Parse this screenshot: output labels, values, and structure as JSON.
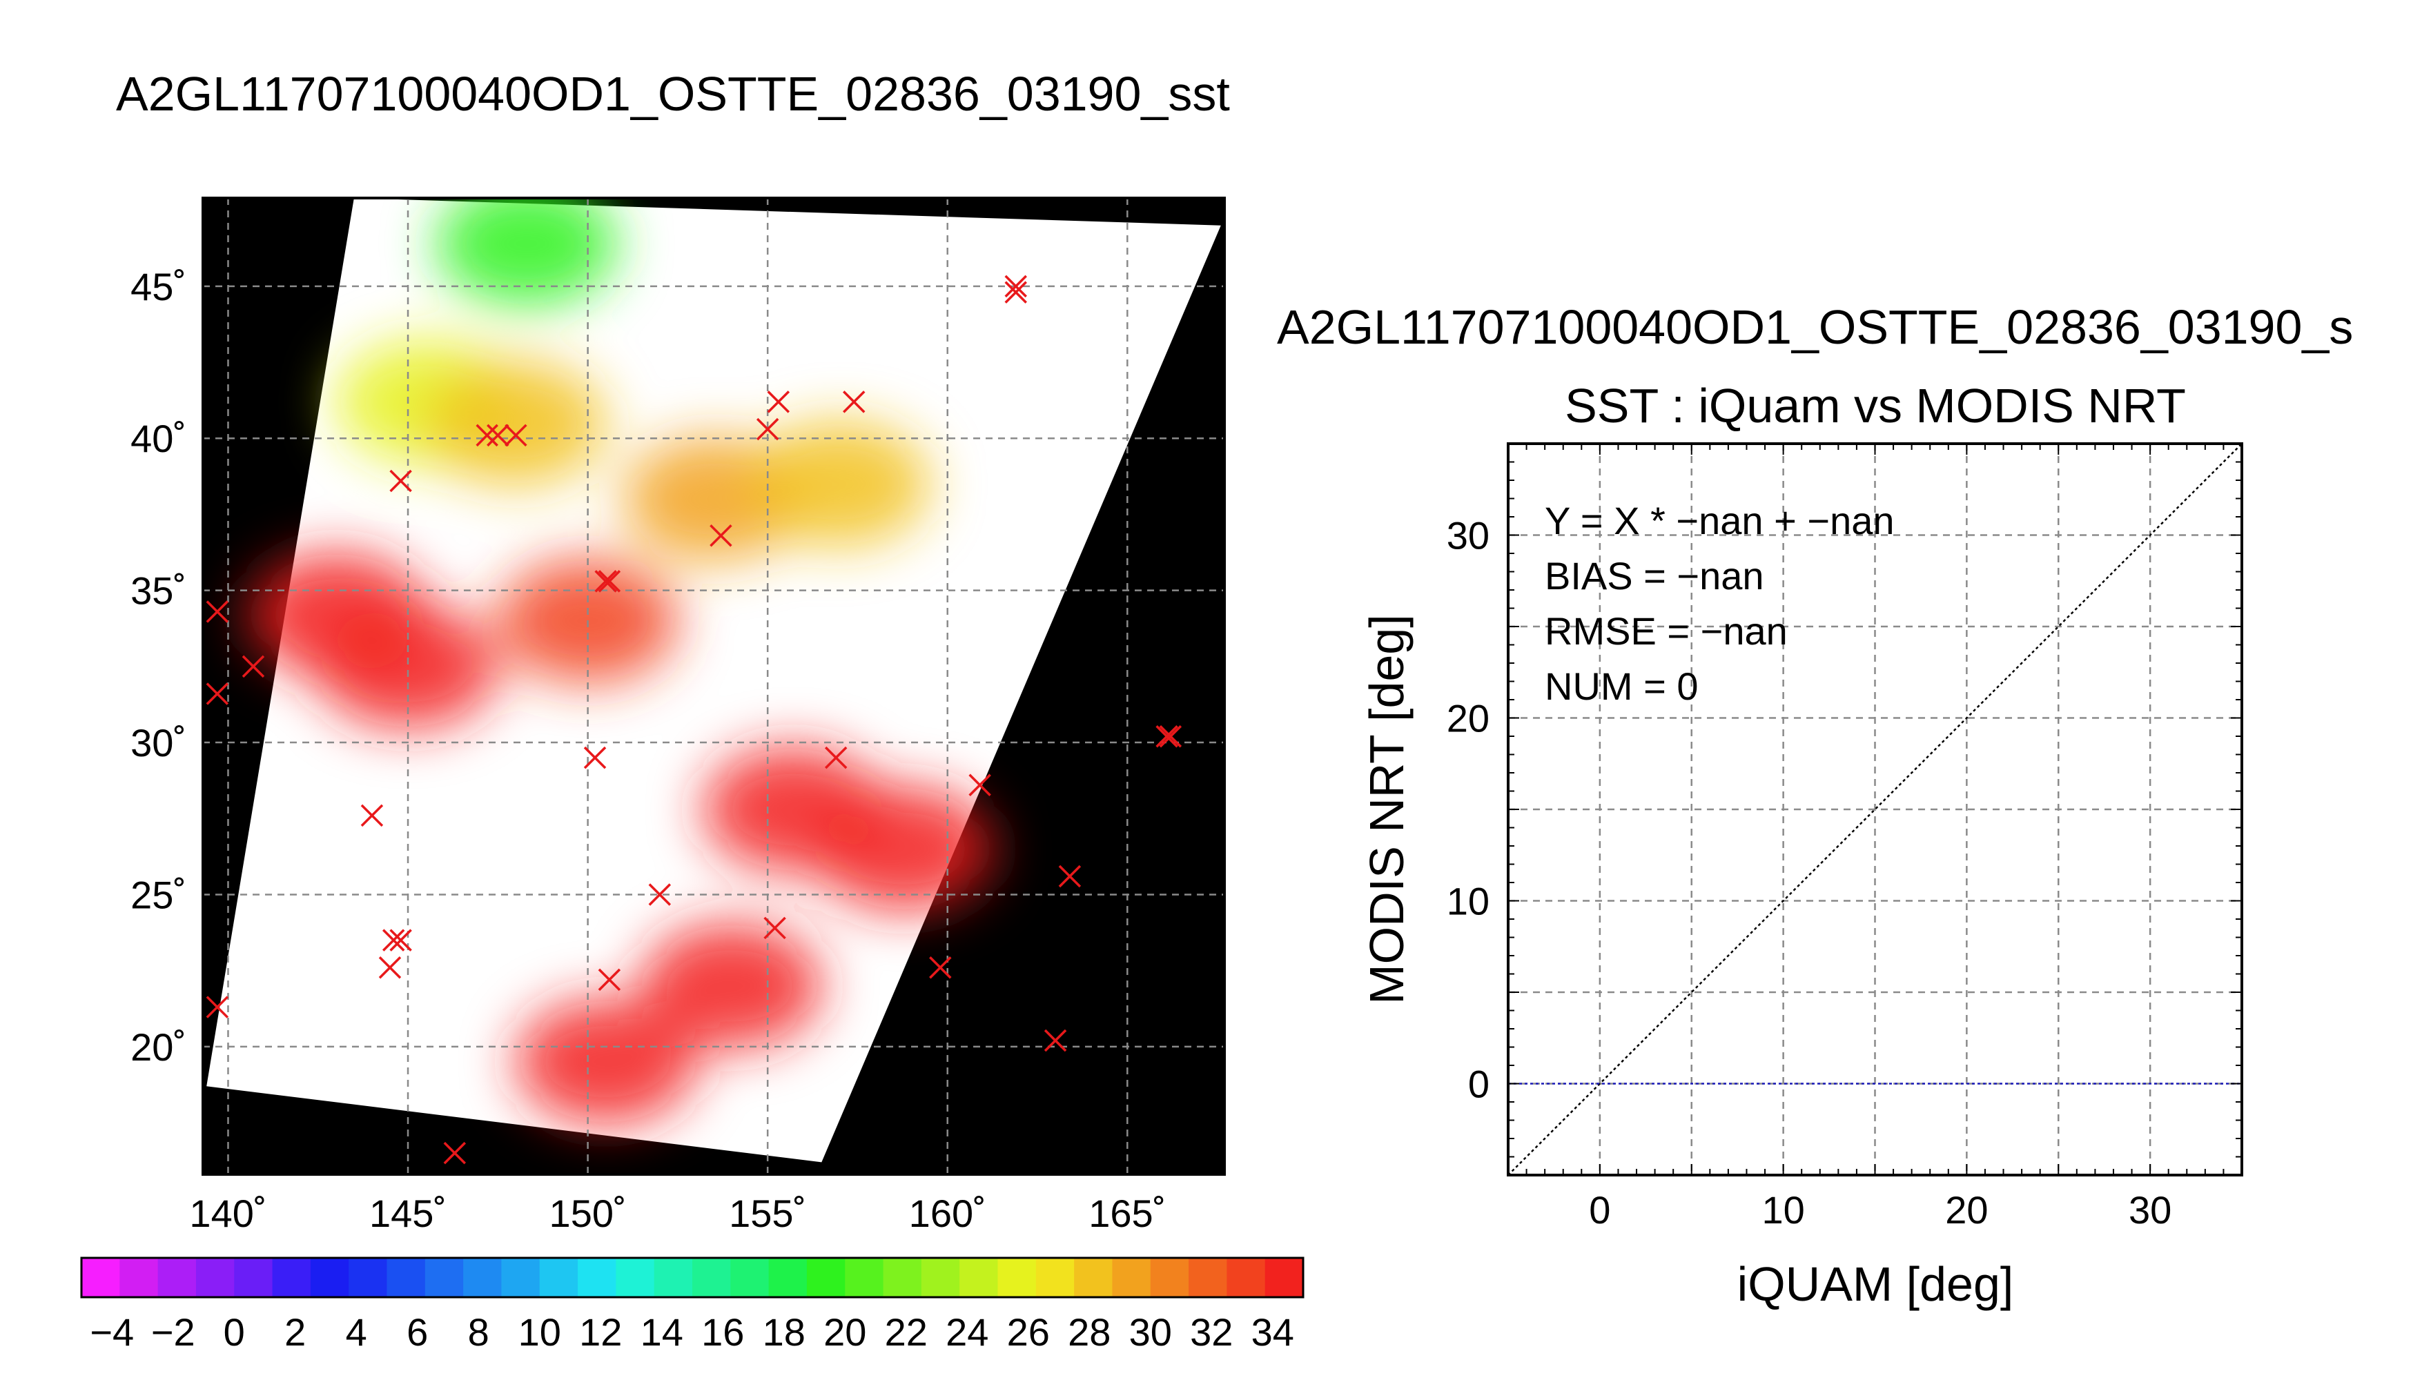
{
  "main_title": "A2GL11707100040OD1_OSTTE_02836_03190_sst",
  "chart_data": [
    {
      "type": "scatter",
      "title": "",
      "xlabel": "",
      "ylabel": "",
      "xlim": [
        139.3,
        167.7
      ],
      "ylim": [
        15.8,
        47.9
      ],
      "grid": true,
      "xticks": [
        140,
        145,
        150,
        155,
        160,
        165
      ],
      "yticks": [
        20,
        25,
        30,
        35,
        40,
        45
      ],
      "xtick_labels": [
        "140˚",
        "145˚",
        "150˚",
        "155˚",
        "160˚",
        "165˚"
      ],
      "ytick_labels": [
        "20˚",
        "25˚",
        "30˚",
        "35˚",
        "40˚",
        "45˚"
      ],
      "swath_corners": [
        [
          143.5,
          47.9
        ],
        [
          167.6,
          47.0
        ],
        [
          156.5,
          16.2
        ],
        [
          139.4,
          18.7
        ]
      ],
      "points": [
        {
          "lon": 161.9,
          "lat": 45.0
        },
        {
          "lon": 161.9,
          "lat": 44.8
        },
        {
          "lon": 155.3,
          "lat": 41.2
        },
        {
          "lon": 157.4,
          "lat": 41.2
        },
        {
          "lon": 155.0,
          "lat": 40.3
        },
        {
          "lon": 147.2,
          "lat": 40.1
        },
        {
          "lon": 147.5,
          "lat": 40.1
        },
        {
          "lon": 148.0,
          "lat": 40.1
        },
        {
          "lon": 144.8,
          "lat": 38.6
        },
        {
          "lon": 153.7,
          "lat": 36.8
        },
        {
          "lon": 150.5,
          "lat": 35.3
        },
        {
          "lon": 150.6,
          "lat": 35.3
        },
        {
          "lon": 139.7,
          "lat": 34.3
        },
        {
          "lon": 140.7,
          "lat": 32.5
        },
        {
          "lon": 139.7,
          "lat": 31.6
        },
        {
          "lon": 166.1,
          "lat": 30.2
        },
        {
          "lon": 166.2,
          "lat": 30.2
        },
        {
          "lon": 150.2,
          "lat": 29.5
        },
        {
          "lon": 156.9,
          "lat": 29.5
        },
        {
          "lon": 160.9,
          "lat": 28.6
        },
        {
          "lon": 144.0,
          "lat": 27.6
        },
        {
          "lon": 163.4,
          "lat": 25.6
        },
        {
          "lon": 152.0,
          "lat": 25.0
        },
        {
          "lon": 155.2,
          "lat": 23.9
        },
        {
          "lon": 144.6,
          "lat": 23.5
        },
        {
          "lon": 144.8,
          "lat": 23.5
        },
        {
          "lon": 144.5,
          "lat": 22.6
        },
        {
          "lon": 159.8,
          "lat": 22.6
        },
        {
          "lon": 150.6,
          "lat": 22.2
        },
        {
          "lon": 139.7,
          "lat": 21.3
        },
        {
          "lon": 163.0,
          "lat": 20.2
        },
        {
          "lon": 146.3,
          "lat": 16.5
        }
      ],
      "marker_color": "#e8191b",
      "background_color": "#000000",
      "swath_color": "#ffffff",
      "sst_patches": [
        {
          "lon": 145.5,
          "lat": 41.2,
          "value": 19
        },
        {
          "lon": 148.0,
          "lat": 40.5,
          "value": 21
        },
        {
          "lon": 143.0,
          "lat": 34.2,
          "value": 27
        },
        {
          "lon": 145.0,
          "lat": 32.5,
          "value": 26
        },
        {
          "lon": 150.0,
          "lat": 34.0,
          "value": 25
        },
        {
          "lon": 153.5,
          "lat": 38.0,
          "value": 22
        },
        {
          "lon": 157.0,
          "lat": 38.5,
          "value": 21
        },
        {
          "lon": 148.3,
          "lat": 46.4,
          "value": 14
        },
        {
          "lon": 158.8,
          "lat": 26.5,
          "value": 32
        },
        {
          "lon": 155.7,
          "lat": 27.8,
          "value": 31
        },
        {
          "lon": 154.0,
          "lat": 22.0,
          "value": 30
        },
        {
          "lon": 150.5,
          "lat": 19.5,
          "value": 30
        }
      ]
    },
    {
      "type": "colorbar",
      "range": [
        -5,
        35
      ],
      "step": 1,
      "tick_labels": [
        "−4",
        "−2",
        "0",
        "2",
        "4",
        "6",
        "8",
        "10",
        "12",
        "14",
        "16",
        "18",
        "20",
        "22",
        "24",
        "26",
        "28",
        "30",
        "32",
        "34"
      ],
      "tick_values": [
        -4,
        -2,
        0,
        2,
        4,
        6,
        8,
        10,
        12,
        14,
        16,
        18,
        20,
        22,
        24,
        26,
        28,
        30,
        32,
        34
      ],
      "colors": [
        "#f61eff",
        "#d21ef3",
        "#ac1ef7",
        "#8a1ef7",
        "#6a1ef7",
        "#3a1ef7",
        "#1a1ef2",
        "#1a32f2",
        "#1a50f2",
        "#1e6ef2",
        "#1e8af2",
        "#1ea6f2",
        "#1ec6f2",
        "#1ee2f2",
        "#1ef2d6",
        "#1ef2b2",
        "#1ef292",
        "#1ef272",
        "#1ef24a",
        "#2ef21e",
        "#56f21e",
        "#7ef21e",
        "#a0f21e",
        "#c4f21e",
        "#e6f21e",
        "#f2e21e",
        "#f2c21e",
        "#f2a21e",
        "#f2821e",
        "#f2621e",
        "#f2421e",
        "#f2221e"
      ]
    },
    {
      "type": "scatter",
      "subtitle": "A2GL11707100040OD1_OSTTE_02836_03190_s",
      "title": "SST : iQuam vs MODIS NRT",
      "xlabel": "iQUAM [deg]",
      "ylabel": "MODIS NRT [deg]",
      "xlim": [
        -5,
        35
      ],
      "ylim": [
        -5,
        35
      ],
      "xticks": [
        0,
        10,
        20,
        30
      ],
      "yticks": [
        0,
        10,
        20,
        30
      ],
      "xtick_labels": [
        "0",
        "10",
        "20",
        "30"
      ],
      "ytick_labels": [
        "0",
        "10",
        "20",
        "30"
      ],
      "grid_step": 5,
      "grid": true,
      "series": [],
      "reference_lines": [
        {
          "kind": "identity",
          "from": [
            -5,
            -5
          ],
          "to": [
            35,
            35
          ],
          "color": "#000000",
          "style": "dotted"
        },
        {
          "kind": "regression",
          "from": [
            -5,
            0
          ],
          "to": [
            35,
            0
          ],
          "color": "#1a1ab8",
          "style": "dotted"
        }
      ],
      "annotations": [
        "Y = X * −nan + −nan",
        "BIAS = −nan",
        "RMSE = −nan",
        "NUM = 0"
      ]
    }
  ]
}
